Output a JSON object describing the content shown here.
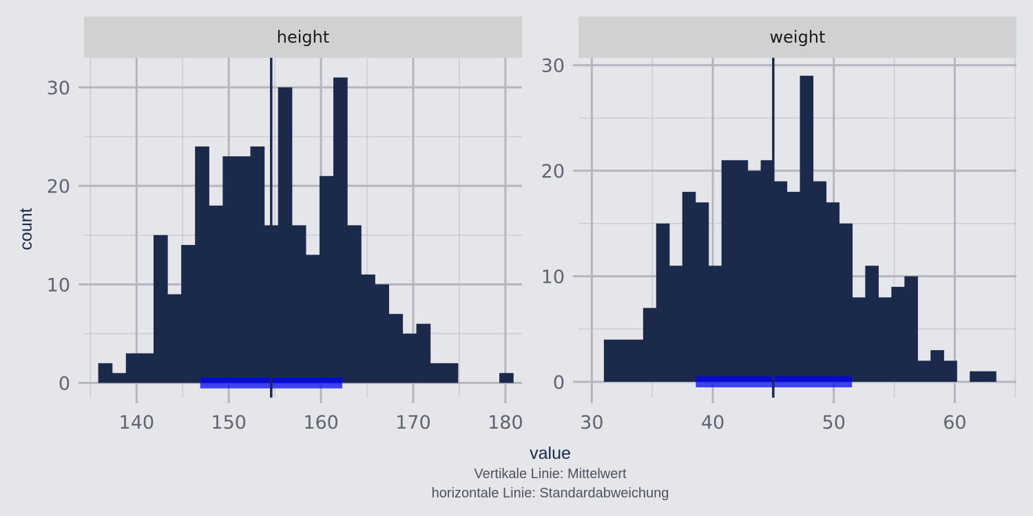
{
  "chart_data": {
    "type": "bar",
    "ylabel": "count",
    "xlabel": "value",
    "caption": [
      "Vertikale Linie: Mittelwert",
      "horizontale Linie: Standardabweichung"
    ],
    "colors": {
      "bar": "#1b2a4a",
      "mean_line": "#1b2a4a",
      "sd_line": "#0000ff",
      "strip": "#d1d1d3",
      "panel": "#e5e6ea",
      "grid": "#b3b6be"
    },
    "panels": [
      {
        "label": "height",
        "xlim": [
          134.3,
          181.8
        ],
        "ylim": [
          -1.5,
          33
        ],
        "xticks": [
          140,
          150,
          160,
          170,
          180
        ],
        "yticks": [
          0,
          10,
          20,
          30
        ],
        "bin_start": 135.84,
        "bin_width": 1.5,
        "counts": [
          2,
          1,
          3,
          3,
          15,
          9,
          14,
          24,
          18,
          23,
          23,
          24,
          16,
          30,
          16,
          13,
          21,
          31,
          16,
          11,
          10,
          7,
          5,
          6,
          2,
          2,
          0,
          0,
          0,
          1
        ],
        "mean": 154.6,
        "sd_range": [
          146.9,
          162.3
        ]
      },
      {
        "label": "weight",
        "xlim": [
          28.9,
          65.1
        ],
        "ylim": [
          -1.5,
          30.7
        ],
        "xticks": [
          30,
          40,
          50,
          60
        ],
        "yticks": [
          0,
          10,
          20,
          30
        ],
        "bin_start": 31.0,
        "bin_width": 1.08,
        "counts": [
          4,
          4,
          4,
          7,
          15,
          11,
          18,
          17,
          11,
          21,
          21,
          20,
          21,
          19,
          18,
          29,
          19,
          17,
          15,
          8,
          11,
          8,
          9,
          10,
          2,
          3,
          2,
          0,
          1,
          1
        ],
        "mean": 45.0,
        "sd_range": [
          38.6,
          51.5
        ]
      }
    ]
  }
}
